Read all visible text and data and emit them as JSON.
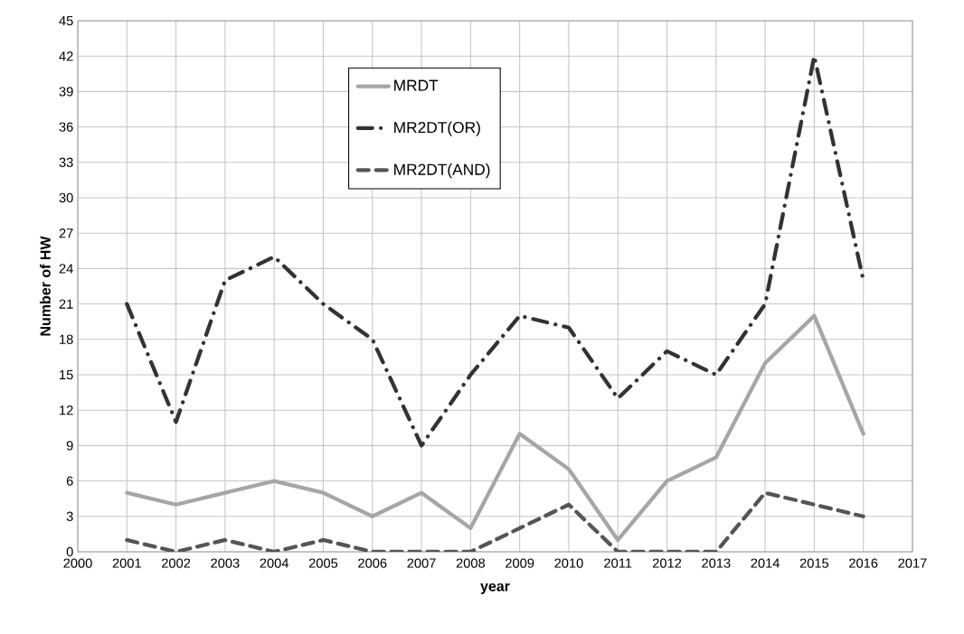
{
  "chart_data": {
    "type": "line",
    "xlabel": "year",
    "ylabel": "Number of HW",
    "x": [
      2001,
      2002,
      2003,
      2004,
      2005,
      2006,
      2007,
      2008,
      2009,
      2010,
      2011,
      2012,
      2013,
      2014,
      2015,
      2016
    ],
    "series": [
      {
        "name": "MRDT",
        "color": "#a6a6a6",
        "line_style": "solid",
        "values": [
          5,
          4,
          5,
          6,
          5,
          3,
          5,
          2,
          10,
          7,
          1,
          6,
          8,
          16,
          20,
          10
        ]
      },
      {
        "name": "MR2DT(OR)",
        "color": "#333333",
        "line_style": "dashdot",
        "values": [
          21,
          11,
          23,
          25,
          21,
          18,
          9,
          15,
          20,
          19,
          13,
          17,
          15,
          21,
          42,
          23
        ]
      },
      {
        "name": "MR2DT(AND)",
        "color": "#555555",
        "line_style": "dashed",
        "values": [
          1,
          0,
          1,
          0,
          1,
          0,
          0,
          0,
          2,
          4,
          0,
          0,
          0,
          5,
          4,
          3
        ]
      }
    ],
    "xlim": [
      2000,
      2017
    ],
    "ylim": [
      0,
      45
    ],
    "xticks": [
      2000,
      2001,
      2002,
      2003,
      2004,
      2005,
      2006,
      2007,
      2008,
      2009,
      2010,
      2011,
      2012,
      2013,
      2014,
      2015,
      2016,
      2017
    ],
    "yticks": [
      0,
      3,
      6,
      9,
      12,
      15,
      18,
      21,
      24,
      27,
      30,
      33,
      36,
      39,
      42,
      45
    ],
    "grid": true,
    "legend": "top",
    "marker": "none"
  }
}
